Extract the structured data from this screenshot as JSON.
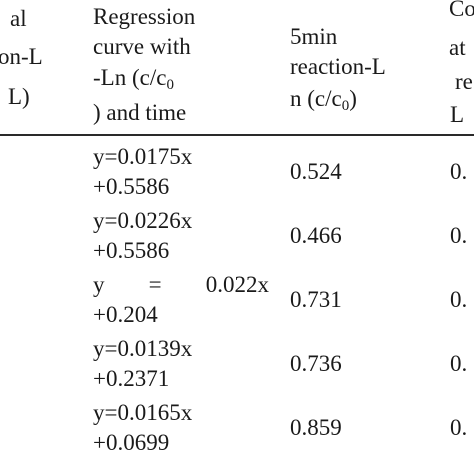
{
  "table": {
    "headers": {
      "col1": [
        "al",
        "on-L",
        "L)"
      ],
      "col2": [
        "Regression",
        "curve with",
        "-Ln (c/c",
        "0",
        ") and time"
      ],
      "col3": [
        "5min",
        "reaction-L",
        "n (c/c",
        "0",
        ")"
      ],
      "col4": [
        "Co",
        "at",
        "re",
        "L"
      ]
    },
    "rows": [
      {
        "eq1": "y=0.0175x",
        "eq2": "+0.5586",
        "ln": "0.524",
        "c4": "0."
      },
      {
        "eq1": "y=0.0226x",
        "eq2": "+0.5586",
        "ln": "0.466",
        "c4": "0."
      },
      {
        "eq1_parts": [
          "y",
          "=",
          "0.022x"
        ],
        "eq2": "+0.204",
        "ln": "0.731",
        "c4": "0."
      },
      {
        "eq1": "y=0.0139x",
        "eq2": "+0.2371",
        "ln": "0.736",
        "c4": "0."
      },
      {
        "eq1": "y=0.0165x",
        "eq2": "+0.0699",
        "ln": "0.859",
        "c4": "0."
      }
    ]
  }
}
